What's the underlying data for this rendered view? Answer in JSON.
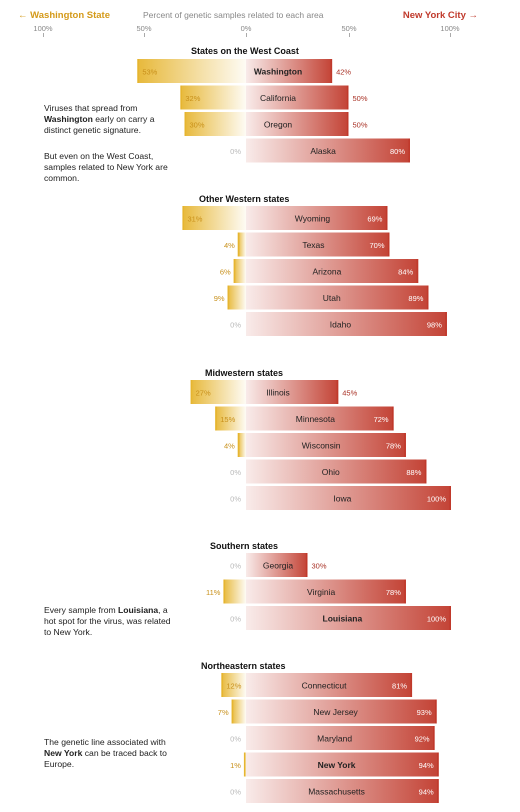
{
  "header": {
    "left_label": "← Washington State",
    "middle_label": "Percent of genetic samples related to each area",
    "right_label": "New York City →"
  },
  "axis_ticks": [
    "100%",
    "50%",
    "0%",
    "50%",
    "100%"
  ],
  "notes": {
    "west": {
      "p1_pre": "Viruses that spread from ",
      "p1_bold": "Washington",
      "p1_post": " early on carry a distinct genetic signature.",
      "p2": "But even on the West Coast, samples related to New York are common."
    },
    "south": {
      "pre": "Every sample from ",
      "bold": "Louisiana",
      "post": ", a hot spot for the virus, was related to New York."
    },
    "northeast": {
      "pre": "The genetic line associated with ",
      "bold": "New York",
      "post": " can be traced back to Europe."
    }
  },
  "colors": {
    "washington": "#e6b530",
    "new_york": "#c0392b",
    "wa_label": "#c8901a",
    "ny_label": "#a93226"
  },
  "chart_data": {
    "type": "bar",
    "series": [
      {
        "name": "Washington State",
        "direction": "left"
      },
      {
        "name": "New York City",
        "direction": "right"
      }
    ],
    "axis": {
      "left_range": [
        0,
        100
      ],
      "right_range": [
        0,
        100
      ]
    },
    "groups": [
      {
        "title": "States on the West Coast",
        "rows": [
          {
            "state": "Washington",
            "wa": 53,
            "ny": 42,
            "bold": true
          },
          {
            "state": "California",
            "wa": 32,
            "ny": 50,
            "bold": false
          },
          {
            "state": "Oregon",
            "wa": 30,
            "ny": 50,
            "bold": false
          },
          {
            "state": "Alaska",
            "wa": 0,
            "ny": 80,
            "bold": false
          }
        ]
      },
      {
        "title": "Other Western states",
        "rows": [
          {
            "state": "Wyoming",
            "wa": 31,
            "ny": 69,
            "bold": false
          },
          {
            "state": "Texas",
            "wa": 4,
            "ny": 70,
            "bold": false
          },
          {
            "state": "Arizona",
            "wa": 6,
            "ny": 84,
            "bold": false
          },
          {
            "state": "Utah",
            "wa": 9,
            "ny": 89,
            "bold": false
          },
          {
            "state": "Idaho",
            "wa": 0,
            "ny": 98,
            "bold": false
          }
        ]
      },
      {
        "title": "Midwestern states",
        "rows": [
          {
            "state": "Illinois",
            "wa": 27,
            "ny": 45,
            "bold": false
          },
          {
            "state": "Minnesota",
            "wa": 15,
            "ny": 72,
            "bold": false
          },
          {
            "state": "Wisconsin",
            "wa": 4,
            "ny": 78,
            "bold": false
          },
          {
            "state": "Ohio",
            "wa": 0,
            "ny": 88,
            "bold": false
          },
          {
            "state": "Iowa",
            "wa": 0,
            "ny": 100,
            "bold": false
          }
        ]
      },
      {
        "title": "Southern states",
        "rows": [
          {
            "state": "Georgia",
            "wa": 0,
            "ny": 30,
            "bold": false
          },
          {
            "state": "Virginia",
            "wa": 11,
            "ny": 78,
            "bold": false
          },
          {
            "state": "Louisiana",
            "wa": 0,
            "ny": 100,
            "bold": true
          }
        ]
      },
      {
        "title": "Northeastern states",
        "rows": [
          {
            "state": "Connecticut",
            "wa": 12,
            "ny": 81,
            "bold": false
          },
          {
            "state": "New Jersey",
            "wa": 7,
            "ny": 93,
            "bold": false
          },
          {
            "state": "Maryland",
            "wa": 0,
            "ny": 92,
            "bold": false
          },
          {
            "state": "New York",
            "wa": 1,
            "ny": 94,
            "bold": true
          },
          {
            "state": "Massachusetts",
            "wa": 0,
            "ny": 94,
            "bold": false
          }
        ]
      }
    ]
  }
}
